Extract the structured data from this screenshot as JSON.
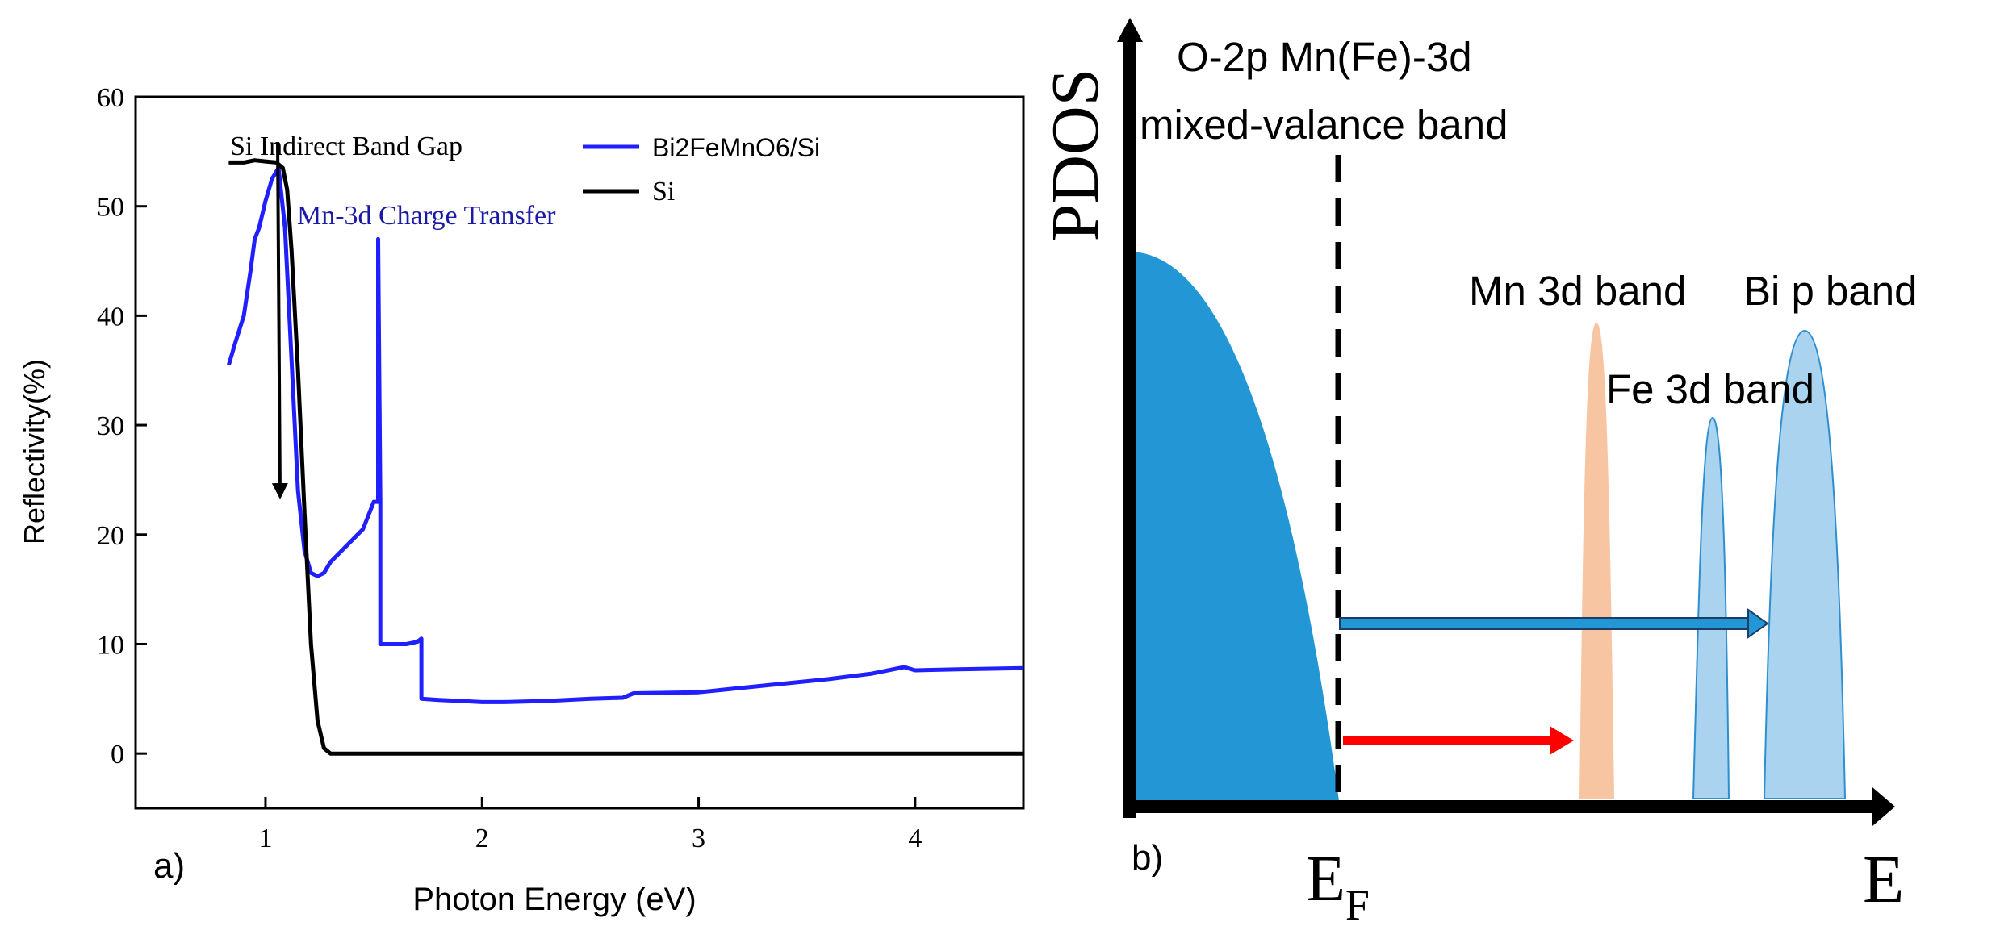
{
  "colors": {
    "blue_series": "#1f1fff",
    "black_series": "#000000",
    "annotation_blue": "#1a1aa6",
    "valence_band": "#2397d6",
    "mn_band": "#f8c5a2",
    "fe_bi_band": "#a9d3ee",
    "fe_bi_outline": "#2e8fd0",
    "red_arrow": "#ff0000"
  },
  "panel_a": {
    "panel_label": "a)",
    "annotations": {
      "si_gap": "Si Indirect Band Gap",
      "mn_transfer": "Mn-3d Charge Transfer"
    }
  },
  "panel_b": {
    "panel_label": "b)",
    "y_axis_label": "PDOS",
    "x_axis_label": "E",
    "fermi_main": "E",
    "fermi_sub": "F",
    "valence_line1": "O-2p Mn(Fe)-3d",
    "valence_line2": "mixed-valance band",
    "mn_label": "Mn 3d band",
    "fe_label": "Fe 3d band",
    "bi_label": "Bi p band"
  },
  "chart_data": [
    {
      "type": "line",
      "title": "",
      "xlabel": "Photon Energy (eV)",
      "ylabel": "Reflectivity(%)",
      "xlim": [
        0.4,
        4.5
      ],
      "ylim": [
        -5,
        60
      ],
      "xticks": [
        1,
        2,
        3,
        4
      ],
      "yticks": [
        0,
        10,
        20,
        30,
        40,
        50,
        60
      ],
      "grid": false,
      "legend": "top-right",
      "series": [
        {
          "name": "Bi2FeMnO6/Si",
          "color": "#1f1fff",
          "x": [
            0.83,
            0.86,
            0.9,
            0.93,
            0.95,
            0.97,
            1.0,
            1.03,
            1.06,
            1.09,
            1.12,
            1.15,
            1.18,
            1.21,
            1.24,
            1.27,
            1.3,
            1.35,
            1.4,
            1.45,
            1.48,
            1.5,
            1.51,
            1.52,
            1.52,
            1.53,
            1.53,
            1.55,
            1.6,
            1.65,
            1.7,
            1.72,
            1.72,
            1.8,
            1.9,
            2.0,
            2.1,
            2.3,
            2.5,
            2.65,
            2.7,
            3.0,
            3.3,
            3.6,
            3.8,
            3.95,
            4.0,
            4.2,
            4.5
          ],
          "y": [
            35.5,
            37.5,
            40,
            44,
            47,
            48,
            50.5,
            52.5,
            53.5,
            48,
            36,
            24,
            18.5,
            16.5,
            16.2,
            16.5,
            17.5,
            18.5,
            19.5,
            20.5,
            22,
            23,
            23,
            23,
            47,
            23,
            10,
            10,
            10,
            10,
            10.2,
            10.5,
            5,
            4.9,
            4.8,
            4.7,
            4.7,
            4.8,
            5,
            5.1,
            5.5,
            5.6,
            6.2,
            6.8,
            7.3,
            7.9,
            7.6,
            7.7,
            7.8
          ]
        },
        {
          "name": "Si",
          "color": "#000000",
          "x": [
            0.83,
            0.9,
            0.95,
            1.0,
            1.05,
            1.08,
            1.1,
            1.12,
            1.15,
            1.18,
            1.21,
            1.24,
            1.27,
            1.3,
            1.35,
            1.5,
            2.0,
            3.0,
            4.0,
            4.5
          ],
          "y": [
            54,
            54,
            54.2,
            54.1,
            54,
            53.5,
            51.5,
            46,
            35,
            22,
            10,
            3,
            0.5,
            0,
            0,
            0,
            0,
            0,
            0,
            0
          ]
        }
      ]
    },
    {
      "type": "area",
      "title": "",
      "xlabel": "E",
      "ylabel": "PDOS",
      "fermi_level_label": "EF",
      "transitions": [
        {
          "from": "EF",
          "to": "Mn 3d band",
          "color": "#ff0000"
        },
        {
          "from": "EF",
          "to": "Bi p band",
          "color": "#2e8fd0"
        }
      ],
      "bands": [
        {
          "name": "O-2p Mn(Fe)-3d mixed-valance band",
          "relative_height": 0.96
        },
        {
          "name": "Mn 3d band",
          "relative_height": 0.83
        },
        {
          "name": "Fe 3d band",
          "relative_height": 0.64
        },
        {
          "name": "Bi p band",
          "relative_height": 0.81
        }
      ]
    }
  ]
}
